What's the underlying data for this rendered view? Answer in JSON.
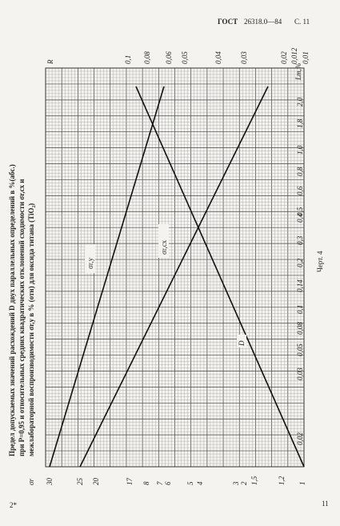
{
  "header": {
    "standard": "ГОСТ",
    "number": "26318.0—84",
    "page": "С. 11"
  },
  "caption": [
    "Предел допускаемых значений расхождений D двух параллельных определений в %(абс.)",
    "при P=0,95 и относительных средних квадратических отклонений сходимости σr,сх и",
    "межлабораторной воспроизводимости σr,у в % (отн) для оксида титана (TiO₂)"
  ],
  "figure_label": "Черт. 4",
  "top_scale": {
    "name": "R",
    "ticks": [
      "0,1",
      "0,08",
      "0,06",
      "0,05",
      "0,04",
      "0,03",
      "0,02",
      "0,012",
      "0,01"
    ]
  },
  "right_scale": {
    "name": "Lm,%",
    "ticks": [
      "2,0",
      "1,8",
      "1,0",
      "0,8",
      "0,6",
      "0,5",
      "0,4",
      "0,3",
      "0,2",
      "0,14",
      "0,1",
      "0,08",
      "0,05",
      "0,03",
      "0,02"
    ]
  },
  "bottom_scale": {
    "name": "σr",
    "ticks": [
      "30",
      "25",
      "20",
      "17",
      "8",
      "7",
      "6",
      "5",
      "4",
      "3",
      "2",
      "1,5",
      "1,2",
      "1"
    ]
  },
  "lines": [
    "σr,у",
    "σr,сх",
    "D"
  ],
  "footer": {
    "left": "2*",
    "right": "11"
  }
}
